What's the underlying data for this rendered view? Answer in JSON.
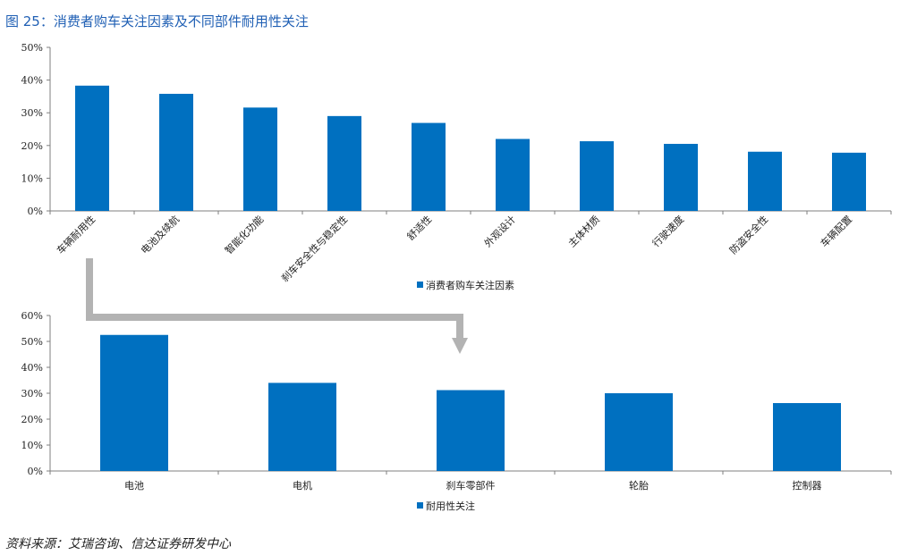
{
  "figure": {
    "title": "图 25：消费者购车关注因素及不同部件耐用性关注",
    "source": "资料来源：艾瑞咨询、信达证券研发中心"
  },
  "colors": {
    "bar": "#0070c0",
    "arrow": "#b3b3b3",
    "axis": "#7f7f7f"
  },
  "chart_data": [
    {
      "type": "bar",
      "title": "",
      "xlabel": "",
      "ylabel": "",
      "categories": [
        "车辆耐用性",
        "电池及续航",
        "智能化功能",
        "刹车安全性与稳定性",
        "舒适性",
        "外观设计",
        "主体材质",
        "行驶速度",
        "防盗安全性",
        "车辆配置"
      ],
      "series": [
        {
          "name": "消费者购车关注因素",
          "values": [
            38.3,
            35.8,
            31.6,
            29.0,
            26.9,
            22.0,
            21.3,
            20.5,
            18.1,
            17.8
          ]
        }
      ],
      "ylim": [
        0,
        50
      ],
      "yticks": [
        "0%",
        "10%",
        "20%",
        "30%",
        "40%",
        "50%"
      ],
      "grid": false,
      "legend_position": "bottom-center"
    },
    {
      "type": "bar",
      "title": "",
      "xlabel": "",
      "ylabel": "",
      "categories": [
        "电池",
        "电机",
        "刹车零部件",
        "轮胎",
        "控制器"
      ],
      "series": [
        {
          "name": "耐用性关注",
          "values": [
            52.5,
            34.0,
            31.2,
            30.0,
            26.2
          ]
        }
      ],
      "ylim": [
        0,
        60
      ],
      "yticks": [
        "0%",
        "10%",
        "20%",
        "30%",
        "40%",
        "50%",
        "60%"
      ],
      "grid": false,
      "legend_position": "bottom-center"
    }
  ]
}
